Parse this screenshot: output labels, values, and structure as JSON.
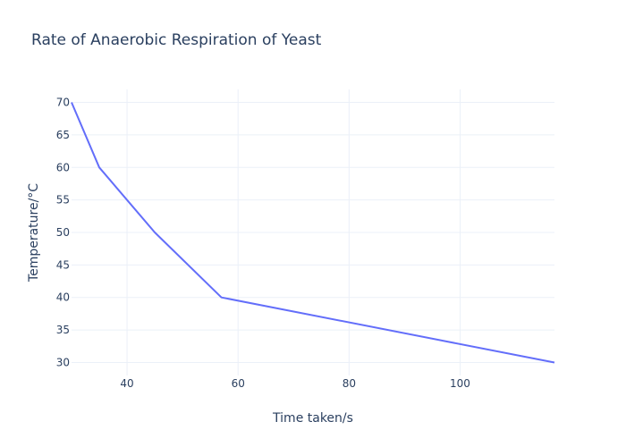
{
  "chart_data": {
    "type": "line",
    "title": "Rate of Anaerobic Respiration of Yeast",
    "xlabel": "Time taken/s",
    "ylabel": "Temperature/°C",
    "xlim": [
      30,
      117
    ],
    "ylim": [
      28,
      72
    ],
    "xticks": [
      40,
      60,
      80,
      100
    ],
    "yticks": [
      30,
      35,
      40,
      45,
      50,
      55,
      60,
      65,
      70
    ],
    "grid": true,
    "series": [
      {
        "color": "#636efa",
        "x": [
          30,
          35,
          45,
          57,
          117
        ],
        "y": [
          70,
          60,
          50,
          40,
          30
        ]
      }
    ]
  }
}
